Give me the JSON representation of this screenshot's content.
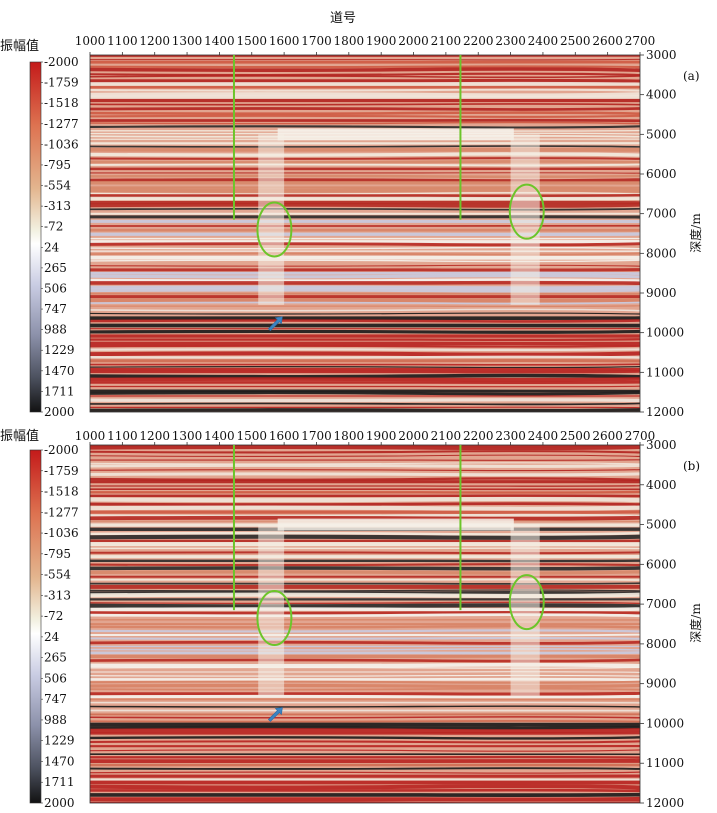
{
  "figure": {
    "x_title": "道号",
    "colorbar_title": "振幅值",
    "depth_label": "深度/m"
  },
  "chart_data": [
    {
      "type": "heatmap",
      "panel_label": "(a)",
      "xlabel": "道号",
      "ylabel": "深度/m",
      "colorbar_label": "振幅值",
      "x_ticks": [
        1000,
        1100,
        1200,
        1300,
        1400,
        1500,
        1600,
        1700,
        1800,
        1900,
        2000,
        2100,
        2200,
        2300,
        2400,
        2500,
        2600,
        2700
      ],
      "y_ticks": [
        3000,
        4000,
        5000,
        6000,
        7000,
        8000,
        9000,
        10000,
        11000,
        12000
      ],
      "xlim": [
        1000,
        2700
      ],
      "ylim": [
        3000,
        12000
      ],
      "y_inverted": true,
      "colorbar_ticks": [
        -2000,
        -1759,
        -1518,
        -1277,
        -1036,
        -795,
        -554,
        -313,
        -72,
        24,
        265,
        506,
        747,
        988,
        1229,
        1470,
        1711,
        2000
      ],
      "colorscale": [
        "#c41a1a",
        "#dd7250",
        "#e3b58e",
        "#f2f0e0",
        "#ffffff",
        "#c8cbe2",
        "#8c91aa",
        "#4d5260",
        "#121212"
      ],
      "annotations": [
        {
          "type": "vertical-line",
          "color": "#6cc52a",
          "x": 1445,
          "y_range": [
            3000,
            7150
          ]
        },
        {
          "type": "vertical-line",
          "color": "#6cc52a",
          "x": 2145,
          "y_range": [
            3000,
            7150
          ]
        },
        {
          "type": "ellipse",
          "color": "#6cc52a",
          "x": 1570,
          "y": 7400
        },
        {
          "type": "ellipse",
          "color": "#6cc52a",
          "x": 2350,
          "y": 6950
        },
        {
          "type": "arrow",
          "color": "#3b84c3",
          "x": 1570,
          "y": 9800
        }
      ]
    },
    {
      "type": "heatmap",
      "panel_label": "(b)",
      "xlabel": "道号",
      "ylabel": "深度/m",
      "colorbar_label": "振幅值",
      "x_ticks": [
        1000,
        1100,
        1200,
        1300,
        1400,
        1500,
        1600,
        1700,
        1800,
        1900,
        2000,
        2100,
        2200,
        2300,
        2400,
        2500,
        2600,
        2700
      ],
      "y_ticks": [
        3000,
        4000,
        5000,
        6000,
        7000,
        8000,
        9000,
        10000,
        11000,
        12000
      ],
      "xlim": [
        1000,
        2700
      ],
      "ylim": [
        3000,
        12000
      ],
      "y_inverted": true,
      "colorbar_ticks": [
        -2000,
        -1759,
        -1518,
        -1277,
        -1036,
        -795,
        -554,
        -313,
        -72,
        24,
        265,
        506,
        747,
        988,
        1229,
        1470,
        1711,
        2000
      ],
      "colorscale": [
        "#c41a1a",
        "#dd7250",
        "#e3b58e",
        "#f2f0e0",
        "#ffffff",
        "#c8cbe2",
        "#8c91aa",
        "#4d5260",
        "#121212"
      ],
      "annotations": [
        {
          "type": "vertical-line",
          "color": "#6cc52a",
          "x": 1445,
          "y_range": [
            3000,
            7150
          ]
        },
        {
          "type": "vertical-line",
          "color": "#6cc52a",
          "x": 2145,
          "y_range": [
            3000,
            7150
          ]
        },
        {
          "type": "ellipse",
          "color": "#6cc52a",
          "x": 1570,
          "y": 7350
        },
        {
          "type": "ellipse",
          "color": "#6cc52a",
          "x": 2350,
          "y": 6950
        },
        {
          "type": "arrow",
          "color": "#3b84c3",
          "x": 1570,
          "y": 9800
        }
      ]
    }
  ]
}
